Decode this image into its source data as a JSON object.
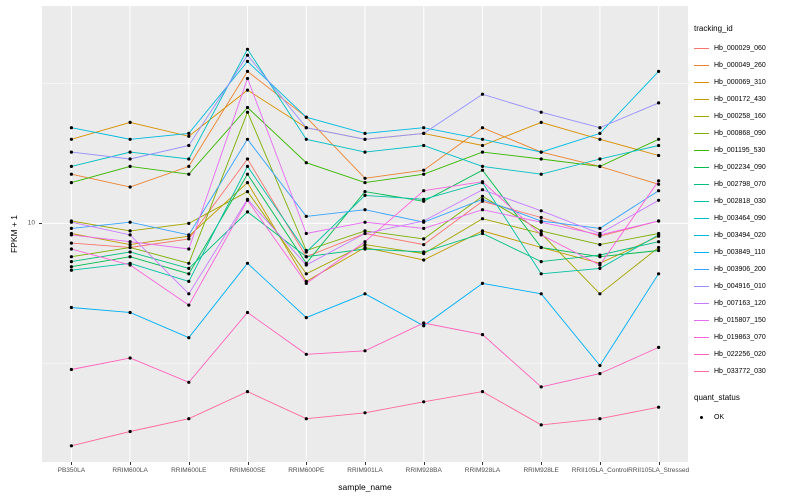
{
  "figure": {
    "ylabel": "FPKM + 1",
    "xlabel": "sample_name",
    "y_tick_label": "10"
  },
  "legend": {
    "color_title": "tracking_id",
    "shape_title": "quant_status",
    "shape_items": [
      {
        "label": "OK"
      }
    ]
  },
  "chart_data": {
    "type": "line",
    "title": "",
    "xlabel": "sample_name",
    "ylabel": "FPKM + 1",
    "log_y": true,
    "ylim": [
      1.4,
      60
    ],
    "y_breaks": [
      10
    ],
    "y_minor_breaks": [
      3.162,
      31.62
    ],
    "panel_bg": "#EBEBEB",
    "grid_color": "#FFFFFF",
    "point_color": "#000000",
    "legend_position": "right",
    "categories": [
      "PB350LA",
      "RRIM600LA",
      "RRIM600LE",
      "RRIM600SE",
      "RRIM600PE",
      "RRIM901LA",
      "RRIM928BA",
      "RRIM928LA",
      "RRIM928LE",
      "RRII105LA_Control",
      "RRII105LA_Stressed"
    ],
    "series": [
      {
        "name": "Hb_000029_060",
        "color": "#F8766D",
        "values": [
          8.5,
          8.2,
          8.8,
          17,
          7.6,
          9.2,
          8.4,
          12,
          10.5,
          9.0,
          10.2
        ]
      },
      {
        "name": "Hb_000049_260",
        "color": "#EA8331",
        "values": [
          15,
          13.5,
          16,
          35,
          24,
          14.5,
          15.5,
          22,
          18,
          16,
          13.8
        ]
      },
      {
        "name": "Hb_000069_310",
        "color": "#D89000",
        "values": [
          20,
          23,
          20.5,
          30,
          22,
          20,
          21,
          19,
          23,
          20,
          17.5
        ]
      },
      {
        "name": "Hb_000172_430",
        "color": "#C09B00",
        "values": [
          9.2,
          8.4,
          9.0,
          14,
          6.2,
          8.2,
          7.4,
          9.4,
          8.2,
          7.2,
          9.0
        ]
      },
      {
        "name": "Hb_000258_160",
        "color": "#A3A500",
        "values": [
          10.2,
          9.4,
          10.0,
          13,
          6.6,
          8.4,
          7.8,
          10.4,
          9.2,
          5.6,
          8.2
        ]
      },
      {
        "name": "Hb_000868_090",
        "color": "#7CAE00",
        "values": [
          7.6,
          8.2,
          7.2,
          25,
          8.0,
          9.4,
          8.8,
          12.5,
          9.4,
          8.4,
          9.2
        ]
      },
      {
        "name": "Hb_001195_530",
        "color": "#39B600",
        "values": [
          14,
          16,
          15,
          26,
          16.5,
          14,
          15,
          18,
          17,
          16,
          20
        ]
      },
      {
        "name": "Hb_002234_090",
        "color": "#00BB4E",
        "values": [
          7.0,
          7.6,
          6.6,
          15,
          7.2,
          13,
          12,
          15.5,
          8.2,
          7.6,
          8.0
        ]
      },
      {
        "name": "Hb_002798_070",
        "color": "#00BF7D",
        "values": [
          7.3,
          7.9,
          6.9,
          11,
          7.6,
          8.1,
          7.9,
          9.2,
          7.3,
          7.7,
          8.6
        ]
      },
      {
        "name": "Hb_002818_030",
        "color": "#00C1A3",
        "values": [
          6.8,
          7.2,
          6.2,
          16,
          7.9,
          12.6,
          12.2,
          14,
          6.6,
          6.9,
          9.1
        ]
      },
      {
        "name": "Hb_003464_090",
        "color": "#00BFC4",
        "values": [
          16,
          18,
          17,
          42,
          20,
          18,
          19,
          16,
          15,
          17,
          19
        ]
      },
      {
        "name": "Hb_003494_020",
        "color": "#00BAE0",
        "values": [
          22,
          20,
          21,
          38,
          24,
          21,
          22,
          20,
          18,
          21,
          35
        ]
      },
      {
        "name": "Hb_003849_110",
        "color": "#00B0F6",
        "values": [
          5.0,
          4.8,
          3.9,
          7.2,
          4.6,
          5.6,
          4.3,
          6.1,
          5.6,
          3.1,
          6.6
        ]
      },
      {
        "name": "Hb_003906_200",
        "color": "#35A2FF",
        "values": [
          9.6,
          10.1,
          9.1,
          20,
          10.6,
          11.2,
          10.1,
          12.2,
          10.2,
          9.6,
          13.1
        ]
      },
      {
        "name": "Hb_004916_010",
        "color": "#9590FF",
        "values": [
          18,
          17,
          19,
          40,
          22,
          20,
          21,
          29,
          25,
          22,
          27
        ]
      },
      {
        "name": "Hb_007163_120",
        "color": "#C77CFF",
        "values": [
          10.1,
          9.1,
          5.6,
          12.2,
          7.1,
          9.2,
          10.2,
          13.2,
          11.1,
          9.2,
          12.1
        ]
      },
      {
        "name": "Hb_015807_150",
        "color": "#E76BF3",
        "values": [
          9.1,
          8.6,
          8.1,
          33,
          9.2,
          10.1,
          9.6,
          11.2,
          10.1,
          9.1,
          10.2
        ]
      },
      {
        "name": "Hb_019863_070",
        "color": "#FA62DB",
        "values": [
          8.1,
          7.1,
          5.1,
          12.1,
          6.1,
          8.6,
          13.1,
          14.1,
          9.1,
          7.1,
          14.2
        ]
      },
      {
        "name": "Hb_022256_020",
        "color": "#FF62BC",
        "values": [
          3.0,
          3.3,
          2.7,
          4.8,
          3.4,
          3.5,
          4.4,
          4.0,
          2.6,
          2.9,
          3.6
        ]
      },
      {
        "name": "Hb_033772_030",
        "color": "#FF6A98",
        "values": [
          1.6,
          1.8,
          2.0,
          2.5,
          2.0,
          2.1,
          2.3,
          2.5,
          1.9,
          2.0,
          2.2
        ]
      }
    ]
  }
}
